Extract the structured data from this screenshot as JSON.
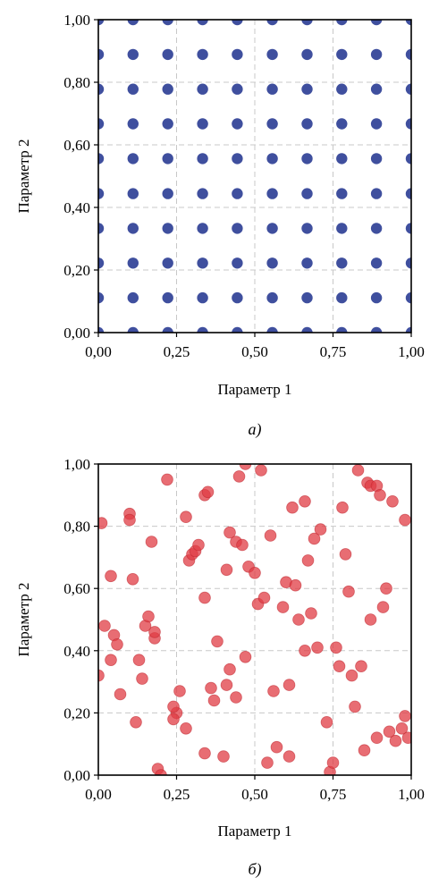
{
  "chart_data": [
    {
      "type": "scatter",
      "caption": "а)",
      "xlabel": "Параметр 1",
      "ylabel": "Параметр 2",
      "xlim": [
        0,
        1
      ],
      "ylim": [
        0,
        1
      ],
      "xticks": [
        "0,00",
        "0,25",
        "0,50",
        "0,75",
        "1,00"
      ],
      "yticks": [
        "0,00",
        "0,20",
        "0,40",
        "0,60",
        "0,80",
        "1,00"
      ],
      "grid": true,
      "marker_color": "#3f4f9e",
      "series": [
        {
          "points": [
            [
              0.0,
              0.0
            ],
            [
              0.111,
              0.0
            ],
            [
              0.222,
              0.0
            ],
            [
              0.333,
              0.0
            ],
            [
              0.444,
              0.0
            ],
            [
              0.556,
              0.0
            ],
            [
              0.667,
              0.0
            ],
            [
              0.778,
              0.0
            ],
            [
              0.889,
              0.0
            ],
            [
              1.0,
              0.0
            ],
            [
              0.0,
              0.111
            ],
            [
              0.111,
              0.111
            ],
            [
              0.222,
              0.111
            ],
            [
              0.333,
              0.111
            ],
            [
              0.444,
              0.111
            ],
            [
              0.556,
              0.111
            ],
            [
              0.667,
              0.111
            ],
            [
              0.778,
              0.111
            ],
            [
              0.889,
              0.111
            ],
            [
              1.0,
              0.111
            ],
            [
              0.0,
              0.222
            ],
            [
              0.111,
              0.222
            ],
            [
              0.222,
              0.222
            ],
            [
              0.333,
              0.222
            ],
            [
              0.444,
              0.222
            ],
            [
              0.556,
              0.222
            ],
            [
              0.667,
              0.222
            ],
            [
              0.778,
              0.222
            ],
            [
              0.889,
              0.222
            ],
            [
              1.0,
              0.222
            ],
            [
              0.0,
              0.333
            ],
            [
              0.111,
              0.333
            ],
            [
              0.222,
              0.333
            ],
            [
              0.333,
              0.333
            ],
            [
              0.444,
              0.333
            ],
            [
              0.556,
              0.333
            ],
            [
              0.667,
              0.333
            ],
            [
              0.778,
              0.333
            ],
            [
              0.889,
              0.333
            ],
            [
              1.0,
              0.333
            ],
            [
              0.0,
              0.444
            ],
            [
              0.111,
              0.444
            ],
            [
              0.222,
              0.444
            ],
            [
              0.333,
              0.444
            ],
            [
              0.444,
              0.444
            ],
            [
              0.556,
              0.444
            ],
            [
              0.667,
              0.444
            ],
            [
              0.778,
              0.444
            ],
            [
              0.889,
              0.444
            ],
            [
              1.0,
              0.444
            ],
            [
              0.0,
              0.556
            ],
            [
              0.111,
              0.556
            ],
            [
              0.222,
              0.556
            ],
            [
              0.333,
              0.556
            ],
            [
              0.444,
              0.556
            ],
            [
              0.556,
              0.556
            ],
            [
              0.667,
              0.556
            ],
            [
              0.778,
              0.556
            ],
            [
              0.889,
              0.556
            ],
            [
              1.0,
              0.556
            ],
            [
              0.0,
              0.667
            ],
            [
              0.111,
              0.667
            ],
            [
              0.222,
              0.667
            ],
            [
              0.333,
              0.667
            ],
            [
              0.444,
              0.667
            ],
            [
              0.556,
              0.667
            ],
            [
              0.667,
              0.667
            ],
            [
              0.778,
              0.667
            ],
            [
              0.889,
              0.667
            ],
            [
              1.0,
              0.667
            ],
            [
              0.0,
              0.778
            ],
            [
              0.111,
              0.778
            ],
            [
              0.222,
              0.778
            ],
            [
              0.333,
              0.778
            ],
            [
              0.444,
              0.778
            ],
            [
              0.556,
              0.778
            ],
            [
              0.667,
              0.778
            ],
            [
              0.778,
              0.778
            ],
            [
              0.889,
              0.778
            ],
            [
              1.0,
              0.778
            ],
            [
              0.0,
              0.889
            ],
            [
              0.111,
              0.889
            ],
            [
              0.222,
              0.889
            ],
            [
              0.333,
              0.889
            ],
            [
              0.444,
              0.889
            ],
            [
              0.556,
              0.889
            ],
            [
              0.667,
              0.889
            ],
            [
              0.778,
              0.889
            ],
            [
              0.889,
              0.889
            ],
            [
              1.0,
              0.889
            ],
            [
              0.0,
              1.0
            ],
            [
              0.111,
              1.0
            ],
            [
              0.222,
              1.0
            ],
            [
              0.333,
              1.0
            ],
            [
              0.444,
              1.0
            ],
            [
              0.556,
              1.0
            ],
            [
              0.667,
              1.0
            ],
            [
              0.778,
              1.0
            ],
            [
              0.889,
              1.0
            ],
            [
              1.0,
              1.0
            ]
          ]
        }
      ]
    },
    {
      "type": "scatter",
      "caption": "б)",
      "xlabel": "Параметр 1",
      "ylabel": "Параметр 2",
      "xlim": [
        0,
        1
      ],
      "ylim": [
        0,
        1
      ],
      "xticks": [
        "0,00",
        "0,25",
        "0,50",
        "0,75",
        "1,00"
      ],
      "yticks": [
        "0,00",
        "0,20",
        "0,40",
        "0,60",
        "0,80",
        "1,00"
      ],
      "grid": true,
      "marker_color": "#e03c44",
      "series": [
        {
          "points": [
            [
              0.01,
              0.81
            ],
            [
              0.04,
              0.64
            ],
            [
              0.1,
              0.84
            ],
            [
              0.1,
              0.82
            ],
            [
              0.11,
              0.63
            ],
            [
              0.17,
              0.75
            ],
            [
              0.22,
              0.95
            ],
            [
              0.28,
              0.83
            ],
            [
              0.34,
              0.9
            ],
            [
              0.35,
              0.91
            ],
            [
              0.45,
              0.96
            ],
            [
              0.47,
              1.0
            ],
            [
              0.52,
              0.98
            ],
            [
              0.02,
              0.48
            ],
            [
              0.04,
              0.37
            ],
            [
              0.05,
              0.45
            ],
            [
              0.06,
              0.42
            ],
            [
              0.15,
              0.48
            ],
            [
              0.16,
              0.51
            ],
            [
              0.18,
              0.44
            ],
            [
              0.18,
              0.46
            ],
            [
              0.29,
              0.69
            ],
            [
              0.3,
              0.71
            ],
            [
              0.31,
              0.72
            ],
            [
              0.32,
              0.74
            ],
            [
              0.41,
              0.66
            ],
            [
              0.42,
              0.78
            ],
            [
              0.44,
              0.75
            ],
            [
              0.46,
              0.74
            ],
            [
              0.0,
              0.32
            ],
            [
              0.07,
              0.26
            ],
            [
              0.12,
              0.17
            ],
            [
              0.13,
              0.37
            ],
            [
              0.14,
              0.31
            ],
            [
              0.25,
              0.2
            ],
            [
              0.24,
              0.18
            ],
            [
              0.24,
              0.22
            ],
            [
              0.26,
              0.27
            ],
            [
              0.28,
              0.15
            ],
            [
              0.34,
              0.57
            ],
            [
              0.36,
              0.28
            ],
            [
              0.37,
              0.24
            ],
            [
              0.38,
              0.43
            ],
            [
              0.41,
              0.29
            ],
            [
              0.42,
              0.34
            ],
            [
              0.44,
              0.25
            ],
            [
              0.47,
              0.38
            ],
            [
              0.19,
              0.02
            ],
            [
              0.2,
              0.0
            ],
            [
              0.34,
              0.07
            ],
            [
              0.4,
              0.06
            ],
            [
              0.48,
              0.67
            ],
            [
              0.5,
              0.65
            ],
            [
              0.51,
              0.55
            ],
            [
              0.53,
              0.57
            ],
            [
              0.55,
              0.77
            ],
            [
              0.56,
              0.27
            ],
            [
              0.57,
              0.09
            ],
            [
              0.59,
              0.54
            ],
            [
              0.6,
              0.62
            ],
            [
              0.61,
              0.06
            ],
            [
              0.61,
              0.29
            ],
            [
              0.62,
              0.86
            ],
            [
              0.63,
              0.61
            ],
            [
              0.64,
              0.5
            ],
            [
              0.66,
              0.88
            ],
            [
              0.66,
              0.4
            ],
            [
              0.54,
              0.04
            ],
            [
              0.67,
              0.69
            ],
            [
              0.68,
              0.52
            ],
            [
              0.69,
              0.76
            ],
            [
              0.7,
              0.41
            ],
            [
              0.71,
              0.79
            ],
            [
              0.73,
              0.17
            ],
            [
              0.74,
              0.01
            ],
            [
              0.75,
              0.04
            ],
            [
              0.76,
              0.41
            ],
            [
              0.77,
              0.35
            ],
            [
              0.78,
              0.86
            ],
            [
              0.79,
              0.71
            ],
            [
              0.8,
              0.59
            ],
            [
              0.81,
              0.32
            ],
            [
              0.82,
              0.22
            ],
            [
              0.83,
              0.98
            ],
            [
              0.84,
              0.35
            ],
            [
              0.85,
              0.08
            ],
            [
              0.86,
              0.94
            ],
            [
              0.87,
              0.5
            ],
            [
              0.87,
              0.93
            ],
            [
              0.89,
              0.12
            ],
            [
              0.89,
              0.93
            ],
            [
              0.9,
              0.9
            ],
            [
              0.91,
              0.54
            ],
            [
              0.92,
              0.6
            ],
            [
              0.93,
              0.14
            ],
            [
              0.94,
              0.88
            ],
            [
              0.95,
              0.11
            ],
            [
              0.97,
              0.15
            ],
            [
              0.98,
              0.82
            ],
            [
              0.98,
              0.19
            ],
            [
              0.99,
              0.12
            ]
          ]
        }
      ]
    }
  ]
}
